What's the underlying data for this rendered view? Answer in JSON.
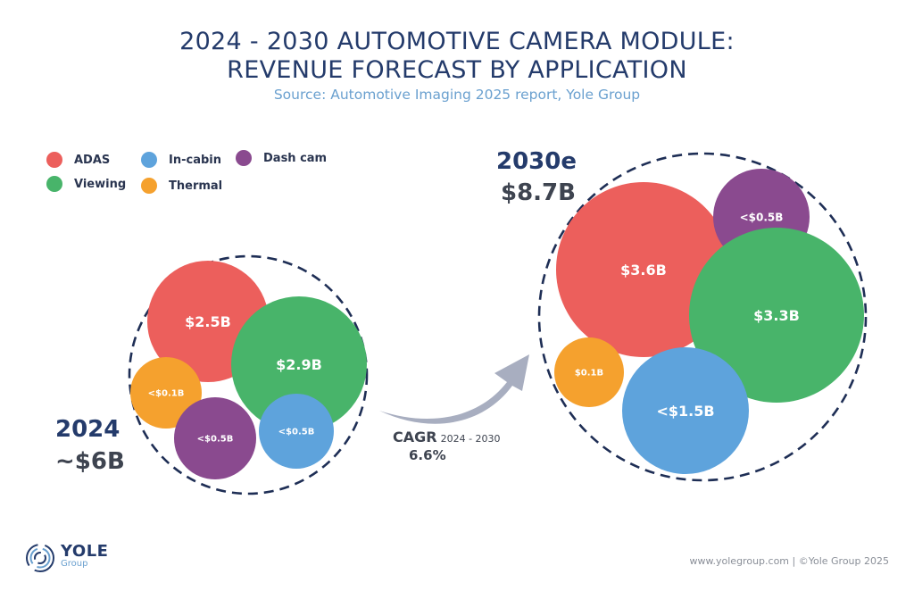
{
  "header": {
    "title_line1": "2024 - 2030 AUTOMOTIVE CAMERA MODULE:",
    "title_line2": "REVENUE FORECAST BY APPLICATION",
    "subtitle": "Source: Automotive Imaging 2025 report, Yole Group"
  },
  "legend": [
    {
      "label": "ADAS",
      "color": "#ec5f5c"
    },
    {
      "label": "In-cabin",
      "color": "#5ea3dc"
    },
    {
      "label": "Dash cam",
      "color": "#8a4a8f"
    },
    {
      "label": "Viewing",
      "color": "#48b46a"
    },
    {
      "label": "Thermal",
      "color": "#f5a12e"
    }
  ],
  "chart_data": {
    "type": "bubble",
    "title": "2024 - 2030 Automotive Camera Module: Revenue Forecast by Application",
    "unit": "USD billions",
    "groups": [
      {
        "year": "2024",
        "total_label": "~$6B",
        "total": 6.0,
        "bubbles": [
          {
            "category": "ADAS",
            "value": 2.5,
            "label": "$2.5B"
          },
          {
            "category": "Viewing",
            "value": 2.9,
            "label": "$2.9B"
          },
          {
            "category": "Thermal",
            "value": 0.1,
            "label": "<$0.1B"
          },
          {
            "category": "Dash cam",
            "value": 0.5,
            "label": "<$0.5B"
          },
          {
            "category": "In-cabin",
            "value": 0.5,
            "label": "<$0.5B"
          }
        ]
      },
      {
        "year": "2030e",
        "total_label": "$8.7B",
        "total": 8.7,
        "bubbles": [
          {
            "category": "ADAS",
            "value": 3.6,
            "label": "$3.6B"
          },
          {
            "category": "Dash cam",
            "value": 0.5,
            "label": "<$0.5B"
          },
          {
            "category": "Viewing",
            "value": 3.3,
            "label": "$3.3B"
          },
          {
            "category": "Thermal",
            "value": 0.1,
            "label": "$0.1B"
          },
          {
            "category": "In-cabin",
            "value": 1.5,
            "label": "<$1.5B"
          }
        ]
      }
    ],
    "cagr": {
      "label": "CAGR",
      "range": "2024 - 2030",
      "value": "6.6%"
    }
  },
  "footer": {
    "logo_name": "YOLE",
    "logo_sub": "Group",
    "credit": "www.yolegroup.com | ©Yole Group 2025"
  }
}
